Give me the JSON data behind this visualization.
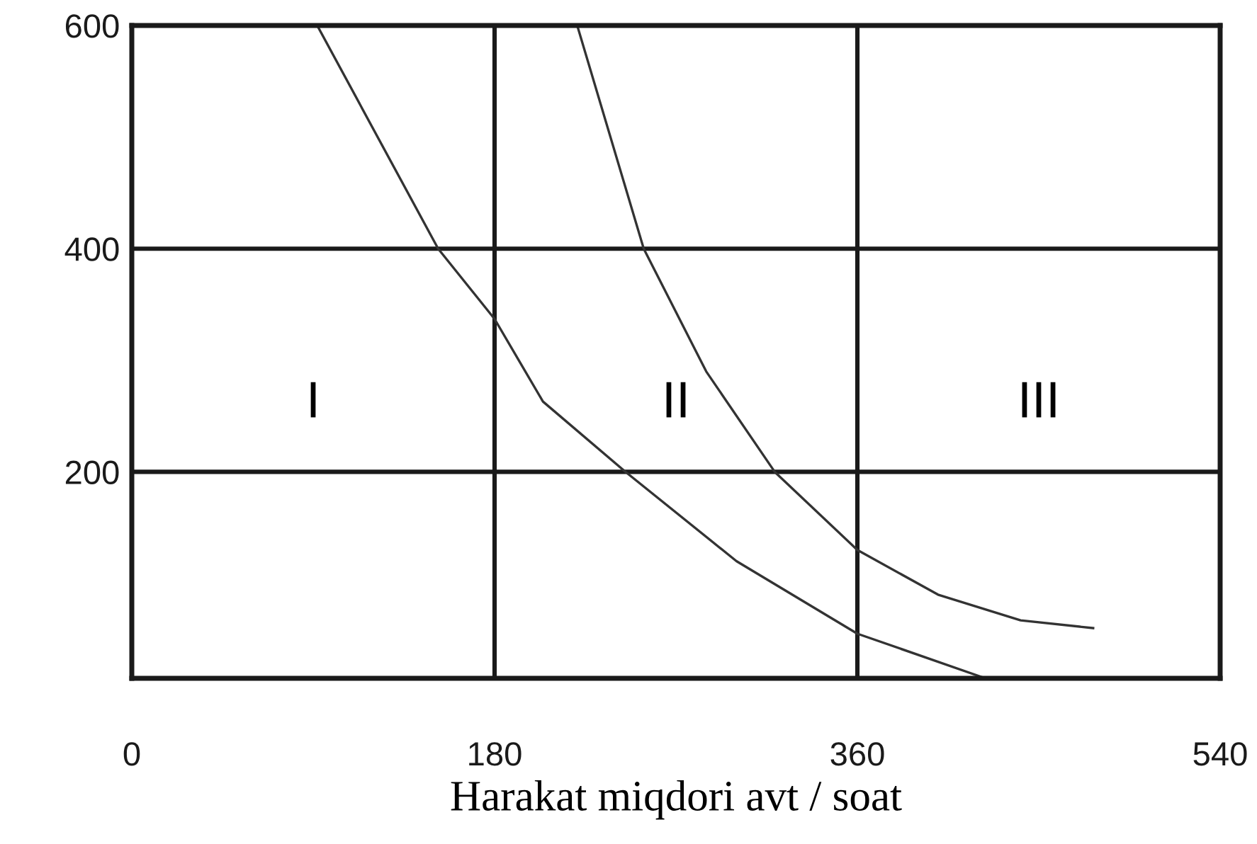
{
  "chart_data": {
    "type": "line",
    "xlabel": "Harakat miqdori avt / soat",
    "series": [
      {
        "color": "#333333",
        "x": [
          92,
          152,
          180,
          204,
          245,
          300,
          360,
          422
        ],
        "values": [
          600,
          400,
          337,
          263,
          200,
          120,
          55,
          16
        ]
      },
      {
        "color": "#333333",
        "x": [
          221,
          254,
          285,
          319,
          360,
          400,
          441,
          477
        ],
        "values": [
          600,
          400,
          290,
          200,
          130,
          90,
          67,
          60
        ]
      }
    ],
    "annotations": [
      "I",
      "II",
      "III"
    ],
    "xlim": [
      0,
      540
    ],
    "ylim": [
      15,
      600
    ],
    "xticks": [
      0,
      180,
      360,
      540
    ],
    "yticks": [
      200,
      400,
      600
    ],
    "grid": true,
    "marker": "none",
    "line_style": "solid",
    "legend": false
  }
}
